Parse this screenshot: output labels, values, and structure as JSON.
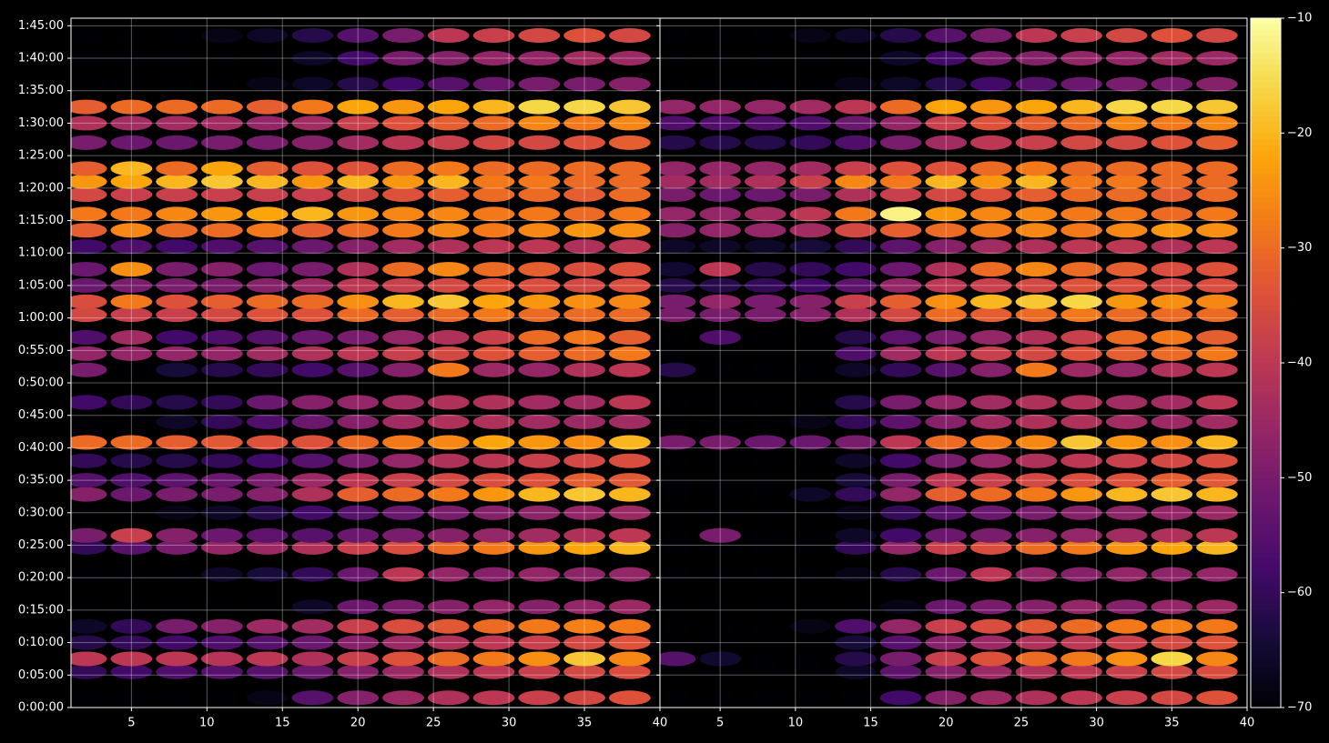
{
  "chart_data": [
    {
      "type": "heatmap",
      "colormap": "inferno",
      "grid": true,
      "x": [
        2,
        5,
        8,
        11,
        14,
        17,
        20,
        23,
        26,
        29,
        32,
        35,
        38
      ],
      "y": [
        90,
        330,
        450,
        600,
        750,
        930,
        1230,
        1480,
        1590,
        1800,
        1970,
        2100,
        2280,
        2450,
        2640,
        2820,
        3120,
        3270,
        3420,
        3630,
        3750,
        3900,
        4050,
        4260,
        4410,
        4560,
        4740,
        4860,
        4980,
        5220,
        5400,
        5550,
        5760,
        6000,
        6210
      ],
      "z": [
        [
          -70,
          -70,
          -70,
          -70,
          -68,
          -55,
          -48,
          -45,
          -42,
          -40,
          -38,
          -36,
          -34
        ],
        [
          -60,
          -58,
          -56,
          -55,
          -55,
          -52,
          -48,
          -45,
          -42,
          -40,
          -38,
          -36,
          -35
        ],
        [
          -40,
          -40,
          -40,
          -41,
          -40,
          -42,
          -38,
          -34,
          -30,
          -28,
          -25,
          -18,
          -26
        ],
        [
          -62,
          -60,
          -58,
          -56,
          -55,
          -52,
          -48,
          -45,
          -42,
          -40,
          -38,
          -36,
          -34
        ],
        [
          -66,
          -60,
          -50,
          -48,
          -45,
          -44,
          -38,
          -35,
          -33,
          -30,
          -28,
          -27,
          -28
        ],
        [
          -70,
          -70,
          -70,
          -70,
          -70,
          -66,
          -52,
          -50,
          -48,
          -46,
          -48,
          -46,
          -45
        ],
        [
          -70,
          -70,
          -70,
          -66,
          -64,
          -60,
          -52,
          -40,
          -46,
          -48,
          -46,
          -47,
          -46
        ],
        [
          -60,
          -55,
          -50,
          -46,
          -45,
          -42,
          -38,
          -35,
          -30,
          -28,
          -24,
          -22,
          -20
        ],
        [
          -50,
          -38,
          -48,
          -52,
          -54,
          -55,
          -52,
          -50,
          -48,
          -46,
          -44,
          -42,
          -40
        ],
        [
          -70,
          -70,
          -68,
          -66,
          -62,
          -58,
          -55,
          -52,
          -50,
          -48,
          -47,
          -46,
          -45
        ],
        [
          -48,
          -52,
          -50,
          -50,
          -48,
          -42,
          -32,
          -30,
          -28,
          -24,
          -20,
          -18,
          -20
        ],
        [
          -55,
          -56,
          -54,
          -52,
          -50,
          -45,
          -40,
          -38,
          -36,
          -35,
          -34,
          -32,
          -33
        ],
        [
          -60,
          -62,
          -62,
          -60,
          -58,
          -55,
          -50,
          -46,
          -42,
          -40,
          -38,
          -36,
          -35
        ],
        [
          -30,
          -30,
          -32,
          -33,
          -34,
          -34,
          -30,
          -28,
          -26,
          -22,
          -24,
          -25,
          -20
        ],
        [
          -70,
          -70,
          -66,
          -60,
          -56,
          -52,
          -48,
          -44,
          -42,
          -42,
          -44,
          -45,
          -44
        ],
        [
          -58,
          -60,
          -62,
          -60,
          -52,
          -48,
          -46,
          -44,
          -42,
          -42,
          -44,
          -44,
          -40
        ],
        [
          -50,
          -70,
          -64,
          -62,
          -60,
          -58,
          -55,
          -48,
          -28,
          -45,
          -46,
          -42,
          -40
        ],
        [
          -46,
          -46,
          -46,
          -46,
          -44,
          -42,
          -40,
          -38,
          -36,
          -34,
          -32,
          -30,
          -28
        ],
        [
          -56,
          -44,
          -58,
          -56,
          -55,
          -52,
          -50,
          -46,
          -42,
          -38,
          -30,
          -28,
          -32
        ],
        [
          -36,
          -38,
          -38,
          -36,
          -34,
          -34,
          -30,
          -32,
          -30,
          -28,
          -30,
          -30,
          -30
        ],
        [
          -35,
          -28,
          -34,
          -32,
          -30,
          -30,
          -25,
          -20,
          -18,
          -22,
          -24,
          -25,
          -26
        ],
        [
          -52,
          -50,
          -50,
          -50,
          -48,
          -45,
          -40,
          -38,
          -36,
          -34,
          -35,
          -36,
          -35
        ],
        [
          -52,
          -25,
          -50,
          -48,
          -52,
          -50,
          -42,
          -30,
          -26,
          -30,
          -32,
          -35,
          -34
        ],
        [
          -58,
          -56,
          -58,
          -56,
          -55,
          -52,
          -48,
          -44,
          -42,
          -40,
          -40,
          -42,
          -40
        ],
        [
          -32,
          -26,
          -30,
          -30,
          -28,
          -32,
          -30,
          -28,
          -26,
          -28,
          -26,
          -24,
          -25
        ],
        [
          -28,
          -28,
          -26,
          -24,
          -22,
          -20,
          -24,
          -26,
          -26,
          -28,
          -28,
          -30,
          -28
        ],
        [
          -36,
          -38,
          -38,
          -38,
          -38,
          -38,
          -36,
          -34,
          -32,
          -30,
          -30,
          -32,
          -30
        ],
        [
          -24,
          -22,
          -20,
          -18,
          -20,
          -24,
          -20,
          -24,
          -20,
          -28,
          -28,
          -30,
          -30
        ],
        [
          -32,
          -20,
          -30,
          -22,
          -32,
          -34,
          -34,
          -30,
          -28,
          -30,
          -30,
          -30,
          -30
        ],
        [
          -50,
          -52,
          -52,
          -50,
          -50,
          -48,
          -44,
          -40,
          -38,
          -36,
          -36,
          -34,
          -32
        ],
        [
          -42,
          -44,
          -44,
          -44,
          -46,
          -44,
          -38,
          -34,
          -32,
          -30,
          -26,
          -28,
          -26
        ],
        [
          -32,
          -30,
          -30,
          -30,
          -32,
          -28,
          -22,
          -24,
          -22,
          -20,
          -16,
          -16,
          -18
        ],
        [
          -70,
          -70,
          -70,
          -70,
          -68,
          -66,
          -62,
          -58,
          -55,
          -52,
          -50,
          -50,
          -48
        ],
        [
          -70,
          -70,
          -70,
          -70,
          -70,
          -66,
          -58,
          -50,
          -48,
          -46,
          -46,
          -44,
          -45
        ],
        [
          -70,
          -70,
          -70,
          -68,
          -66,
          -62,
          -55,
          -50,
          -40,
          -38,
          -36,
          -34,
          -36
        ]
      ],
      "xlim": [
        1,
        40
      ],
      "xticks": [
        5,
        10,
        15,
        20,
        25,
        30,
        35,
        40
      ],
      "ylim": [
        0,
        6370
      ],
      "yticks": [
        {
          "value": 0,
          "label": "0:00:00"
        },
        {
          "value": 300,
          "label": "0:05:00"
        },
        {
          "value": 600,
          "label": "0:10:00"
        },
        {
          "value": 900,
          "label": "0:15:00"
        },
        {
          "value": 1200,
          "label": "0:20:00"
        },
        {
          "value": 1500,
          "label": "0:25:00"
        },
        {
          "value": 1800,
          "label": "0:30:00"
        },
        {
          "value": 2100,
          "label": "0:35:00"
        },
        {
          "value": 2400,
          "label": "0:40:00"
        },
        {
          "value": 2700,
          "label": "0:45:00"
        },
        {
          "value": 3000,
          "label": "0:50:00"
        },
        {
          "value": 3300,
          "label": "0:55:00"
        },
        {
          "value": 3600,
          "label": "1:00:00"
        },
        {
          "value": 3900,
          "label": "1:05:00"
        },
        {
          "value": 4200,
          "label": "1:10:00"
        },
        {
          "value": 4500,
          "label": "1:15:00"
        },
        {
          "value": 4800,
          "label": "1:20:00"
        },
        {
          "value": 5100,
          "label": "1:25:00"
        },
        {
          "value": 5400,
          "label": "1:30:00"
        },
        {
          "value": 5700,
          "label": "1:35:00"
        },
        {
          "value": 6000,
          "label": "1:40:00"
        },
        {
          "value": 6300,
          "label": "1:45:00"
        }
      ],
      "clim": [
        -70,
        -10
      ]
    },
    {
      "type": "heatmap",
      "colormap": "inferno",
      "grid": true,
      "x": [
        2,
        5,
        8,
        11,
        14,
        17,
        20,
        23,
        26,
        29,
        32,
        35,
        38
      ],
      "y": [
        90,
        330,
        450,
        600,
        750,
        930,
        1230,
        1480,
        1590,
        1800,
        1970,
        2100,
        2280,
        2450,
        2640,
        2820,
        3120,
        3270,
        3420,
        3630,
        3750,
        3900,
        4050,
        4260,
        4410,
        4560,
        4740,
        4860,
        4980,
        5220,
        5400,
        5550,
        5760,
        6000,
        6210
      ],
      "z": [
        [
          -70,
          -70,
          -70,
          -70,
          -70,
          -58,
          -48,
          -45,
          -42,
          -40,
          -38,
          -36,
          -34
        ],
        [
          -70,
          -70,
          -70,
          -70,
          -66,
          -54,
          -48,
          -45,
          -42,
          -40,
          -38,
          -36,
          -35
        ],
        [
          -55,
          -65,
          -70,
          -70,
          -62,
          -50,
          -38,
          -34,
          -30,
          -28,
          -25,
          -16,
          -26
        ],
        [
          -70,
          -70,
          -70,
          -70,
          -64,
          -55,
          -48,
          -45,
          -42,
          -40,
          -38,
          -36,
          -34
        ],
        [
          -70,
          -70,
          -70,
          -68,
          -56,
          -46,
          -38,
          -35,
          -33,
          -30,
          -28,
          -27,
          -28
        ],
        [
          -70,
          -70,
          -70,
          -70,
          -70,
          -68,
          -52,
          -50,
          -48,
          -46,
          -48,
          -46,
          -45
        ],
        [
          -70,
          -70,
          -70,
          -70,
          -68,
          -62,
          -52,
          -40,
          -46,
          -48,
          -46,
          -47,
          -46
        ],
        [
          -70,
          -70,
          -70,
          -70,
          -60,
          -46,
          -38,
          -35,
          -30,
          -28,
          -24,
          -22,
          -20
        ],
        [
          -70,
          -50,
          -70,
          -70,
          -66,
          -58,
          -52,
          -50,
          -48,
          -46,
          -44,
          -42,
          -40
        ],
        [
          -70,
          -70,
          -70,
          -70,
          -68,
          -60,
          -55,
          -52,
          -50,
          -48,
          -47,
          -46,
          -45
        ],
        [
          -70,
          -70,
          -70,
          -66,
          -60,
          -46,
          -32,
          -30,
          -28,
          -24,
          -20,
          -18,
          -20
        ],
        [
          -70,
          -70,
          -70,
          -70,
          -64,
          -50,
          -40,
          -38,
          -36,
          -35,
          -34,
          -32,
          -33
        ],
        [
          -70,
          -70,
          -70,
          -70,
          -66,
          -58,
          -50,
          -46,
          -42,
          -40,
          -38,
          -36,
          -35
        ],
        [
          -50,
          -50,
          -52,
          -52,
          -50,
          -40,
          -30,
          -28,
          -26,
          -18,
          -24,
          -25,
          -20
        ],
        [
          -70,
          -70,
          -70,
          -68,
          -60,
          -54,
          -48,
          -44,
          -42,
          -42,
          -44,
          -45,
          -44
        ],
        [
          -70,
          -70,
          -70,
          -70,
          -62,
          -50,
          -46,
          -44,
          -42,
          -42,
          -44,
          -44,
          -40
        ],
        [
          -62,
          -70,
          -70,
          -70,
          -66,
          -60,
          -55,
          -48,
          -28,
          -45,
          -46,
          -42,
          -40
        ],
        [
          -70,
          -70,
          -70,
          -70,
          -56,
          -44,
          -40,
          -38,
          -36,
          -34,
          -32,
          -30,
          -28
        ],
        [
          -70,
          -56,
          -70,
          -70,
          -62,
          -54,
          -50,
          -46,
          -42,
          -38,
          -30,
          -28,
          -32
        ],
        [
          -50,
          -50,
          -50,
          -48,
          -42,
          -36,
          -30,
          -32,
          -30,
          -28,
          -30,
          -30,
          -30
        ],
        [
          -50,
          -46,
          -50,
          -48,
          -38,
          -32,
          -25,
          -20,
          -18,
          -16,
          -24,
          -25,
          -26
        ],
        [
          -62,
          -62,
          -60,
          -58,
          -54,
          -46,
          -40,
          -38,
          -36,
          -34,
          -35,
          -36,
          -35
        ],
        [
          -65,
          -40,
          -62,
          -60,
          -58,
          -52,
          -42,
          -30,
          -26,
          -30,
          -32,
          -35,
          -34
        ],
        [
          -66,
          -66,
          -66,
          -64,
          -60,
          -54,
          -48,
          -44,
          -42,
          -40,
          -40,
          -42,
          -40
        ],
        [
          -48,
          -46,
          -46,
          -44,
          -36,
          -32,
          -30,
          -28,
          -26,
          -28,
          -26,
          -24,
          -25
        ],
        [
          -46,
          -46,
          -44,
          -40,
          -28,
          -12,
          -24,
          -26,
          -26,
          -28,
          -28,
          -30,
          -28
        ],
        [
          -50,
          -52,
          -52,
          -50,
          -42,
          -38,
          -36,
          -34,
          -32,
          -30,
          -30,
          -32,
          -30
        ],
        [
          -44,
          -44,
          -42,
          -38,
          -26,
          -28,
          -20,
          -24,
          -20,
          -28,
          -28,
          -30,
          -30
        ],
        [
          -46,
          -46,
          -46,
          -44,
          -38,
          -34,
          -34,
          -30,
          -28,
          -30,
          -30,
          -30,
          -30
        ],
        [
          -62,
          -62,
          -62,
          -60,
          -56,
          -50,
          -44,
          -40,
          -38,
          -36,
          -36,
          -34,
          -32
        ],
        [
          -56,
          -56,
          -56,
          -56,
          -52,
          -46,
          -38,
          -34,
          -32,
          -30,
          -26,
          -28,
          -26
        ],
        [
          -46,
          -46,
          -46,
          -44,
          -40,
          -30,
          -22,
          -24,
          -22,
          -20,
          -16,
          -16,
          -18
        ],
        [
          -70,
          -70,
          -70,
          -70,
          -68,
          -66,
          -62,
          -58,
          -55,
          -52,
          -50,
          -50,
          -48
        ],
        [
          -70,
          -70,
          -70,
          -70,
          -70,
          -66,
          -58,
          -50,
          -48,
          -46,
          -46,
          -44,
          -45
        ],
        [
          -70,
          -70,
          -70,
          -68,
          -66,
          -62,
          -55,
          -50,
          -40,
          -38,
          -36,
          -34,
          -36
        ]
      ],
      "xlim": [
        1,
        40
      ],
      "xticks": [
        5,
        10,
        15,
        20,
        25,
        30,
        35,
        40
      ],
      "ylim": [
        0,
        6370
      ],
      "yticks": [
        0,
        300,
        600,
        900,
        1200,
        1500,
        1800,
        2100,
        2400,
        2700,
        3000,
        3300,
        3600,
        3900,
        4200,
        4500,
        4800,
        5100,
        5400,
        5700,
        6000,
        6300
      ],
      "clim": [
        -70,
        -10
      ],
      "colorbar_ticks": [
        {
          "value": -10,
          "label": "−10"
        },
        {
          "value": -20,
          "label": "−20"
        },
        {
          "value": -30,
          "label": "−30"
        },
        {
          "value": -40,
          "label": "−40"
        },
        {
          "value": -50,
          "label": "−50"
        },
        {
          "value": -60,
          "label": "−60"
        },
        {
          "value": -70,
          "label": "−70"
        }
      ]
    }
  ]
}
